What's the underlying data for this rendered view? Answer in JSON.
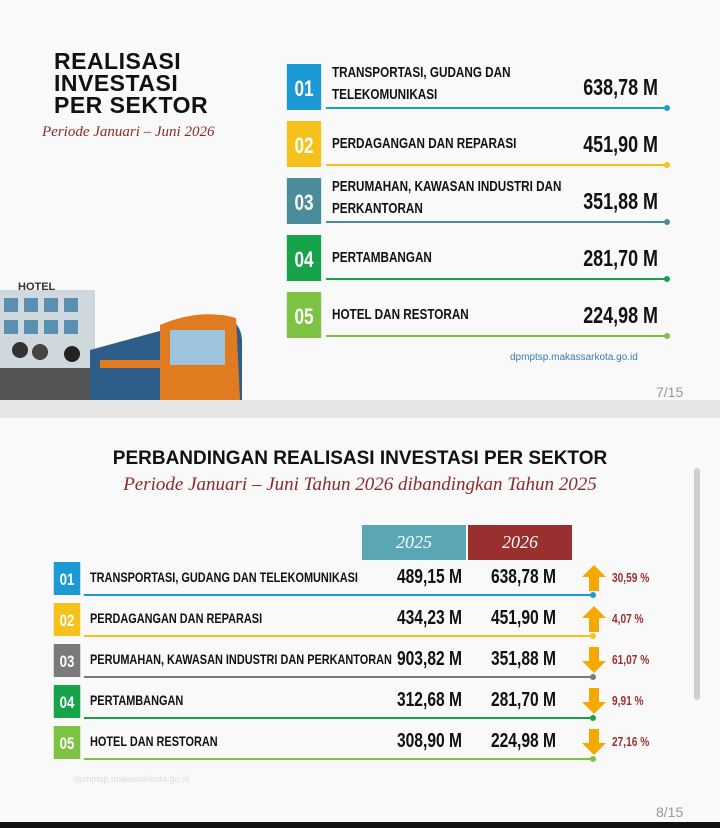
{
  "slide1": {
    "title_lines": [
      "REALISASI",
      "INVESTASI",
      "PER SEKTOR"
    ],
    "subtitle": "Periode Januari – Juni 2026",
    "items": [
      {
        "number": "01",
        "label": "TRANSPORTASI, GUDANG DAN TELEKOMUNIKASI",
        "value": "638,78 M",
        "color": "#1c9ad6"
      },
      {
        "number": "02",
        "label": "PERDAGANGAN DAN REPARASI",
        "value": "451,90 M",
        "color": "#f4c21b"
      },
      {
        "number": "03",
        "label": "PERUMAHAN, KAWASAN INDUSTRI DAN PERKANTORAN",
        "value": "351,88 M",
        "color": "#4a8c9a"
      },
      {
        "number": "04",
        "label": "PERTAMBANGAN",
        "value": "281,70 M",
        "color": "#16a34a"
      },
      {
        "number": "05",
        "label": "HOTEL DAN RESTORAN",
        "value": "224,98 M",
        "color": "#7dc243"
      }
    ],
    "hotel_sign": "HOTEL",
    "source": "dpmptsp.makassarkota.go.id",
    "page": "7/15"
  },
  "slide2": {
    "title": "PERBANDINGAN REALISASI INVESTASI PER SEKTOR",
    "subtitle": "Periode Januari – Juni Tahun 2026 dibandingkan Tahun 2025",
    "headers": [
      "2025",
      "2026"
    ],
    "rows": [
      {
        "number": "01",
        "label": "TRANSPORTASI, GUDANG DAN TELEKOMUNIKASI",
        "v2025": "489,15 M",
        "v2026": "638,78 M",
        "change": "30,59 %",
        "direction": "up",
        "color": "#1c9ad6"
      },
      {
        "number": "02",
        "label": "PERDAGANGAN DAN REPARASI",
        "v2025": "434,23 M",
        "v2026": "451,90 M",
        "change": "4,07 %",
        "direction": "up",
        "color": "#f4c21b"
      },
      {
        "number": "03",
        "label": "PERUMAHAN, KAWASAN INDUSTRI DAN PERKANTORAN",
        "v2025": "903,82 M",
        "v2026": "351,88 M",
        "change": "61,07 %",
        "direction": "down",
        "color": "#7a7a7a"
      },
      {
        "number": "04",
        "label": "PERTAMBANGAN",
        "v2025": "312,68 M",
        "v2026": "281,70 M",
        "change": "9,91 %",
        "direction": "down",
        "color": "#16a34a"
      },
      {
        "number": "05",
        "label": "HOTEL DAN RESTORAN",
        "v2025": "308,90 M",
        "v2026": "224,98 M",
        "change": "27,16 %",
        "direction": "down",
        "color": "#7dc243"
      }
    ],
    "watermark": "dpmptsp.makassarkota.go.id",
    "page": "8/15"
  }
}
